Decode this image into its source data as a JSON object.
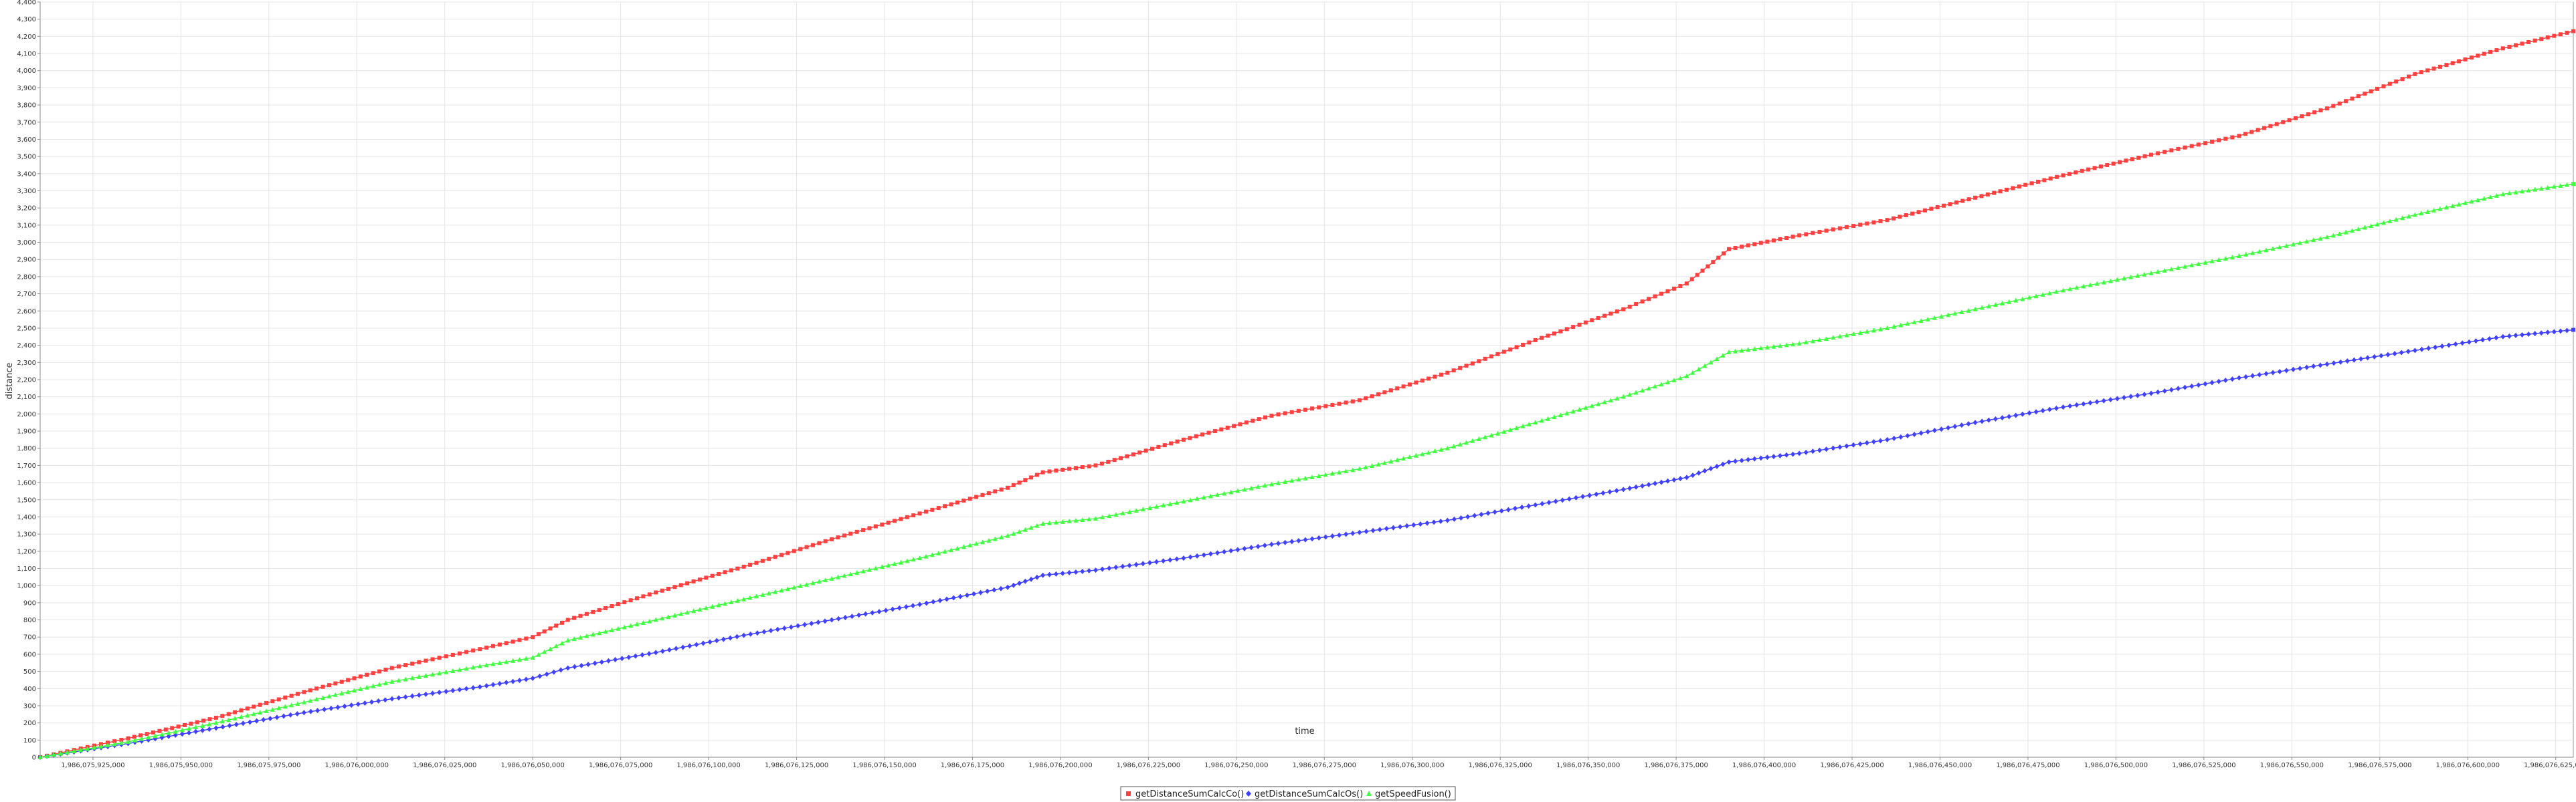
{
  "chart_data": {
    "type": "line",
    "title": "",
    "xlabel": "time",
    "ylabel": "distance",
    "xlim": [
      1986075910000,
      1986076630000
    ],
    "ylim": [
      0,
      4400
    ],
    "grid": true,
    "legend_position": "bottom",
    "x_tick_labels": [
      "1,986,075,925,000",
      "1,986,075,950,000",
      "1,986,075,975,000",
      "1,986,076,000,000",
      "1,986,076,025,000",
      "1,986,076,050,000",
      "1,986,076,075,000",
      "1,986,076,100,000",
      "1,986,076,125,000",
      "1,986,076,150,000",
      "1,986,076,175,000",
      "1,986,076,200,000",
      "1,986,076,225,000",
      "1,986,076,250,000",
      "1,986,076,275,000",
      "1,986,076,300,000",
      "1,986,076,325,000",
      "1,986,076,350,000",
      "1,986,076,375,000",
      "1,986,076,400,000",
      "1,986,076,425,000",
      "1,986,076,450,000",
      "1,986,076,475,000",
      "1,986,076,500,000",
      "1,986,076,525,000",
      "1,986,076,550,000",
      "1,986,076,575,000",
      "1,986,076,600,000",
      "1,986,076,625,000"
    ],
    "x_tick_values": [
      1986075925000,
      1986075950000,
      1986075975000,
      1986076000000,
      1986076025000,
      1986076050000,
      1986076075000,
      1986076100000,
      1986076125000,
      1986076150000,
      1986076175000,
      1986076200000,
      1986076225000,
      1986076250000,
      1986076275000,
      1986076300000,
      1986076325000,
      1986076350000,
      1986076375000,
      1986076400000,
      1986076425000,
      1986076450000,
      1986076475000,
      1986076500000,
      1986076525000,
      1986076550000,
      1986076575000,
      1986076600000,
      1986076625000
    ],
    "y_tick_labels": [
      "0",
      "100",
      "200",
      "300",
      "400",
      "500",
      "600",
      "700",
      "800",
      "900",
      "1,000",
      "1,100",
      "1,200",
      "1,300",
      "1,400",
      "1,500",
      "1,600",
      "1,700",
      "1,800",
      "1,900",
      "2,000",
      "2,100",
      "2,200",
      "2,300",
      "2,400",
      "2,500",
      "2,600",
      "2,700",
      "2,800",
      "2,900",
      "3,000",
      "3,100",
      "3,200",
      "3,300",
      "3,400",
      "3,500",
      "3,600",
      "3,700",
      "3,800",
      "3,900",
      "4,000",
      "4,100",
      "4,200",
      "4,300",
      "4,400"
    ],
    "y_tick_values": [
      0,
      100,
      200,
      300,
      400,
      500,
      600,
      700,
      800,
      900,
      1000,
      1100,
      1200,
      1300,
      1400,
      1500,
      1600,
      1700,
      1800,
      1900,
      2000,
      2100,
      2200,
      2300,
      2400,
      2500,
      2600,
      2700,
      2800,
      2900,
      3000,
      3100,
      3200,
      3300,
      3400,
      3500,
      3600,
      3700,
      3800,
      3900,
      4000,
      4100,
      4200,
      4300,
      4400
    ],
    "series": [
      {
        "name": "getDistanceSumCalcCo()",
        "color": "#ff4040",
        "marker": "square",
        "x": [
          1986075910000,
          1986075935000,
          1986075960000,
          1986075985000,
          1986076010000,
          1986076035000,
          1986076050000,
          1986076060000,
          1986076085000,
          1986076110000,
          1986076135000,
          1986076160000,
          1986076185000,
          1986076195000,
          1986076210000,
          1986076235000,
          1986076260000,
          1986076285000,
          1986076310000,
          1986076335000,
          1986076360000,
          1986076378000,
          1986076390000,
          1986076410000,
          1986076435000,
          1986076460000,
          1986076485000,
          1986076510000,
          1986076535000,
          1986076560000,
          1986076585000,
          1986076610000,
          1986076630000
        ],
        "values": [
          0,
          110,
          230,
          380,
          520,
          630,
          700,
          800,
          960,
          1110,
          1270,
          1420,
          1570,
          1660,
          1700,
          1850,
          1990,
          2080,
          2240,
          2430,
          2610,
          2760,
          2960,
          3040,
          3130,
          3260,
          3390,
          3510,
          3620,
          3780,
          3980,
          4130,
          4230
        ]
      },
      {
        "name": "getDistanceSumCalcOs()",
        "color": "#4040ff",
        "marker": "diamond",
        "x": [
          1986075910000,
          1986075935000,
          1986075960000,
          1986075985000,
          1986076010000,
          1986076035000,
          1986076050000,
          1986076060000,
          1986076085000,
          1986076110000,
          1986076135000,
          1986076160000,
          1986076185000,
          1986076195000,
          1986076210000,
          1986076235000,
          1986076260000,
          1986076285000,
          1986076310000,
          1986076335000,
          1986076360000,
          1986076378000,
          1986076390000,
          1986076410000,
          1986076435000,
          1986076460000,
          1986076485000,
          1986076510000,
          1986076535000,
          1986076560000,
          1986076585000,
          1986076610000,
          1986076630000
        ],
        "values": [
          0,
          80,
          170,
          260,
          340,
          410,
          460,
          520,
          610,
          710,
          800,
          890,
          990,
          1060,
          1090,
          1160,
          1240,
          1310,
          1380,
          1470,
          1560,
          1630,
          1720,
          1770,
          1850,
          1950,
          2040,
          2120,
          2210,
          2290,
          2370,
          2450,
          2490
        ]
      },
      {
        "name": "getSpeedFusion()",
        "color": "#40ff40",
        "marker": "triangle",
        "x": [
          1986075910000,
          1986075935000,
          1986075960000,
          1986075985000,
          1986076010000,
          1986076035000,
          1986076050000,
          1986076060000,
          1986076085000,
          1986076110000,
          1986076135000,
          1986076160000,
          1986076185000,
          1986076195000,
          1986076210000,
          1986076235000,
          1986076260000,
          1986076285000,
          1986076310000,
          1986076335000,
          1986076360000,
          1986076378000,
          1986076390000,
          1986076410000,
          1986076435000,
          1986076460000,
          1986076485000,
          1986076510000,
          1986076535000,
          1986076560000,
          1986076585000,
          1986076610000,
          1986076630000
        ],
        "values": [
          0,
          90,
          200,
          320,
          440,
          530,
          580,
          680,
          800,
          920,
          1040,
          1160,
          1290,
          1360,
          1390,
          1490,
          1590,
          1680,
          1800,
          1950,
          2100,
          2220,
          2360,
          2410,
          2500,
          2610,
          2720,
          2820,
          2920,
          3030,
          3160,
          3280,
          3340
        ]
      }
    ]
  }
}
